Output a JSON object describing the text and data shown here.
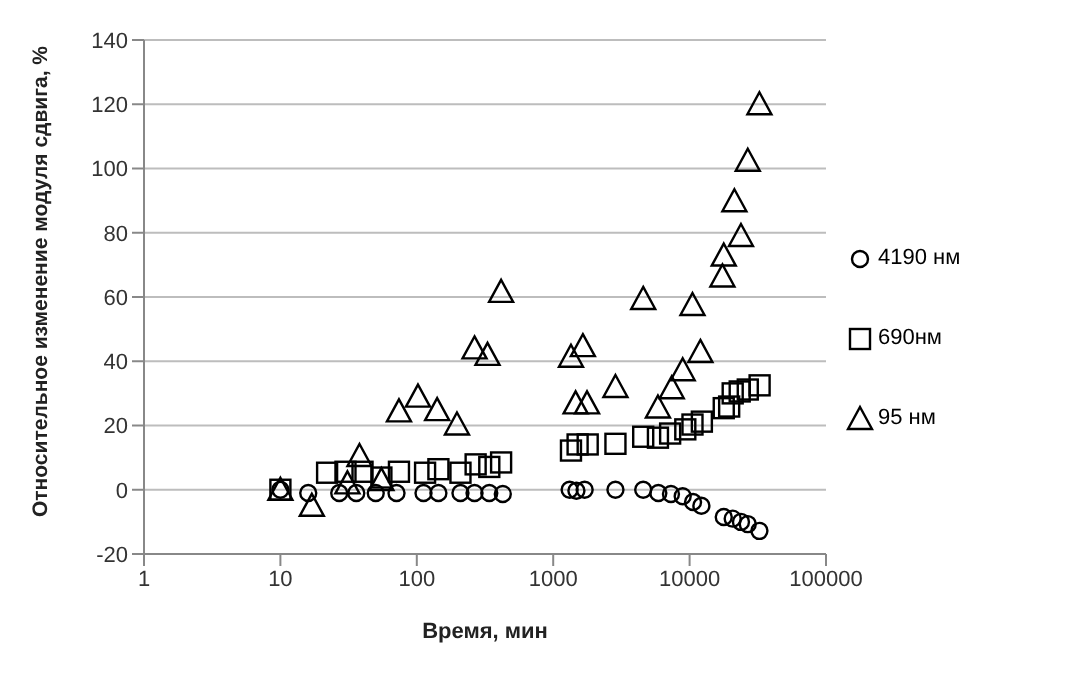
{
  "chart_data": {
    "type": "scatter",
    "xlabel": "Время, мин",
    "ylabel": "Относительное изменение модуля сдвига, %",
    "log": "x",
    "xlim": [
      1,
      100000
    ],
    "xticks": [
      1,
      10,
      100,
      1000,
      10000,
      100000
    ],
    "ylim": [
      -20,
      140
    ],
    "yticks": [
      -20,
      0,
      20,
      40,
      60,
      80,
      100,
      120,
      140
    ],
    "grid": "y",
    "legend": "right",
    "series": [
      {
        "name": "4190 нм",
        "color": "#000000",
        "marker": "circle",
        "x": [
          10,
          16,
          27,
          36,
          50,
          71,
          112,
          144,
          209,
          265,
          340,
          427,
          1320,
          1480,
          1700,
          2860,
          4570,
          5900,
          7300,
          8900,
          10600,
          12200,
          17800,
          20700,
          23800,
          26700,
          32500
        ],
        "values": [
          0,
          -1,
          -1,
          -1,
          -1,
          -1,
          -1,
          -1,
          -1,
          -1,
          -1,
          -1.3,
          0,
          -0.3,
          0,
          0,
          0,
          -1,
          -1.3,
          -2,
          -3.8,
          -5,
          -8.5,
          -9,
          -10,
          -10.7,
          -12.8
        ]
      },
      {
        "name": "690нм",
        "color": "#000000",
        "marker": "square",
        "x": [
          10,
          22,
          30,
          40,
          55,
          74,
          115,
          144,
          209,
          270,
          340,
          415,
          1350,
          1510,
          1790,
          2860,
          4570,
          5860,
          7200,
          9300,
          10500,
          12300,
          17800,
          19500,
          20700,
          23300,
          26700,
          32600
        ],
        "values": [
          0,
          5.3,
          5.6,
          5.6,
          3.8,
          5.6,
          5.3,
          6.4,
          5.3,
          7.9,
          7.1,
          8.5,
          12.2,
          14.1,
          14.1,
          14.3,
          16.5,
          16.2,
          17.5,
          18.8,
          20.3,
          21.2,
          25.4,
          25.9,
          30,
          30.6,
          31.2,
          32.5
        ]
      },
      {
        "name": "95 нм",
        "color": "#000000",
        "marker": "triangle",
        "x": [
          10,
          17,
          31,
          38,
          55,
          74,
          102,
          141,
          197,
          265,
          330,
          415,
          1350,
          1650,
          1460,
          1770,
          2860,
          4570,
          5860,
          7400,
          8900,
          10500,
          12000,
          17400,
          17800,
          21300,
          23800,
          26700,
          32500
        ],
        "values": [
          0,
          -5,
          2,
          10.5,
          3,
          24.4,
          29,
          24.8,
          20.3,
          44,
          42,
          61.6,
          41.4,
          44.7,
          26.9,
          26.9,
          32,
          59.4,
          25.6,
          31.6,
          37.2,
          57.5,
          42.9,
          66.4,
          72.9,
          89.8,
          79,
          102.4,
          120
        ]
      }
    ]
  }
}
